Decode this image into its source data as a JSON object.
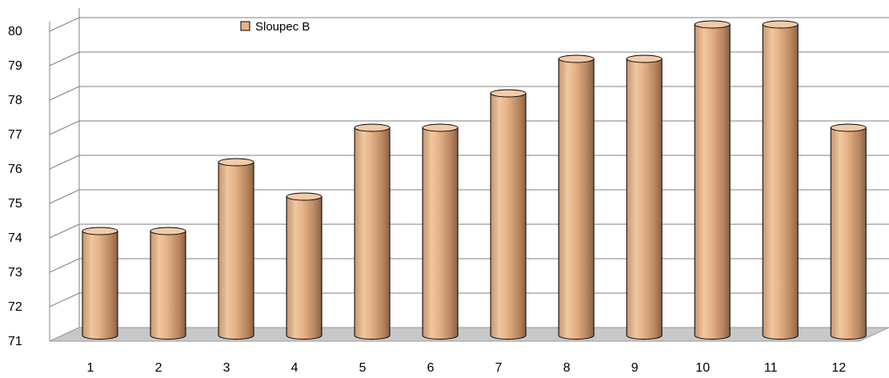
{
  "chart_data": {
    "type": "bar",
    "categories": [
      "1",
      "2",
      "3",
      "4",
      "5",
      "6",
      "7",
      "8",
      "9",
      "10",
      "11",
      "12"
    ],
    "series": [
      {
        "name": "Sloupec B",
        "values": [
          74,
          74,
          76,
          75,
          77,
          77,
          78,
          79,
          79,
          80,
          80,
          77
        ]
      }
    ],
    "ylim": [
      71,
      80
    ],
    "yticks": [
      "71",
      "72",
      "73",
      "74",
      "75",
      "76",
      "77",
      "78",
      "79",
      "80"
    ],
    "grid": true,
    "legend": {
      "position": "top-left",
      "label": "Sloupec B"
    },
    "colors": {
      "bar": "#e8b48a",
      "bar_dark": "#8a6244",
      "bar_top": "#f2cba8",
      "floor": "#c8c8c8",
      "grid": "#808080"
    }
  }
}
